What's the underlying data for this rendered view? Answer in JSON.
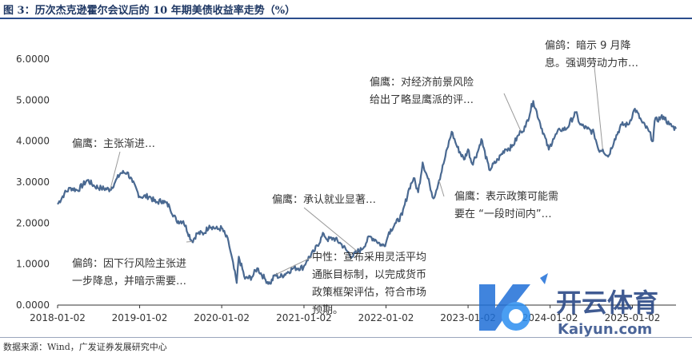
{
  "figure": {
    "title": "图 3：历次杰克逊霍尔会议后的 10 年期美债收益率走势（%）",
    "source": "数据来源：Wind，广发证券发展研究中心"
  },
  "watermark": {
    "brand": "开云体育",
    "site": "Kaiyun.com"
  },
  "colors": {
    "line": "#4a6991",
    "title": "#1f3864",
    "leader": "#9a9a9a",
    "axis": "#333333"
  },
  "chart_data": {
    "type": "line",
    "title": "",
    "xlabel": "",
    "ylabel": "",
    "ylim": [
      0,
      6
    ],
    "xlim": [
      "2018-01-02",
      "2025-07-15"
    ],
    "grid": false,
    "yticks": [
      "0.0000",
      "1.0000",
      "2.0000",
      "3.0000",
      "4.0000",
      "5.0000",
      "6.0000"
    ],
    "xticks": [
      "2018-01-02",
      "2019-01-02",
      "2020-01-02",
      "2021-01-02",
      "2022-01-02",
      "2023-01-02",
      "2024-01-02",
      "2025-01-02"
    ],
    "series": [
      {
        "name": "",
        "points": [
          [
            "2018-01-02",
            2.46
          ],
          [
            "2018-02-01",
            2.72
          ],
          [
            "2018-03-01",
            2.86
          ],
          [
            "2018-04-01",
            2.8
          ],
          [
            "2018-05-15",
            3.05
          ],
          [
            "2018-06-15",
            2.9
          ],
          [
            "2018-07-15",
            2.85
          ],
          [
            "2018-08-24",
            2.82
          ],
          [
            "2018-09-15",
            3.0
          ],
          [
            "2018-10-09",
            3.22
          ],
          [
            "2018-11-08",
            3.24
          ],
          [
            "2018-12-01",
            3.0
          ],
          [
            "2019-01-02",
            2.65
          ],
          [
            "2019-02-15",
            2.65
          ],
          [
            "2019-03-15",
            2.5
          ],
          [
            "2019-04-15",
            2.55
          ],
          [
            "2019-05-15",
            2.4
          ],
          [
            "2019-06-15",
            2.05
          ],
          [
            "2019-07-15",
            2.05
          ],
          [
            "2019-08-23",
            1.55
          ],
          [
            "2019-09-15",
            1.75
          ],
          [
            "2019-10-15",
            1.75
          ],
          [
            "2019-11-08",
            1.94
          ],
          [
            "2019-12-15",
            1.85
          ],
          [
            "2020-01-02",
            1.88
          ],
          [
            "2020-02-01",
            1.55
          ],
          [
            "2020-03-09",
            0.54
          ],
          [
            "2020-03-18",
            1.18
          ],
          [
            "2020-04-15",
            0.64
          ],
          [
            "2020-05-15",
            0.68
          ],
          [
            "2020-06-08",
            0.9
          ],
          [
            "2020-07-15",
            0.62
          ],
          [
            "2020-08-04",
            0.52
          ],
          [
            "2020-08-27",
            0.74
          ],
          [
            "2020-09-15",
            0.68
          ],
          [
            "2020-10-15",
            0.78
          ],
          [
            "2020-11-15",
            0.9
          ],
          [
            "2020-12-31",
            0.92
          ],
          [
            "2021-01-15",
            1.1
          ],
          [
            "2021-02-15",
            1.3
          ],
          [
            "2021-03-31",
            1.74
          ],
          [
            "2021-04-15",
            1.6
          ],
          [
            "2021-05-15",
            1.63
          ],
          [
            "2021-06-15",
            1.5
          ],
          [
            "2021-07-15",
            1.3
          ],
          [
            "2021-08-05",
            1.18
          ],
          [
            "2021-08-27",
            1.31
          ],
          [
            "2021-09-15",
            1.35
          ],
          [
            "2021-10-21",
            1.67
          ],
          [
            "2021-11-15",
            1.6
          ],
          [
            "2021-12-15",
            1.45
          ],
          [
            "2022-01-02",
            1.52
          ],
          [
            "2022-01-15",
            1.78
          ],
          [
            "2022-02-15",
            2.0
          ],
          [
            "2022-03-15",
            2.2
          ],
          [
            "2022-04-15",
            2.85
          ],
          [
            "2022-05-05",
            3.1
          ],
          [
            "2022-05-25",
            2.75
          ],
          [
            "2022-06-14",
            3.48
          ],
          [
            "2022-07-15",
            2.95
          ],
          [
            "2022-08-01",
            2.6
          ],
          [
            "2022-08-26",
            3.04
          ],
          [
            "2022-09-15",
            3.45
          ],
          [
            "2022-10-21",
            4.23
          ],
          [
            "2022-11-15",
            3.85
          ],
          [
            "2022-12-15",
            3.55
          ],
          [
            "2023-01-02",
            3.8
          ],
          [
            "2023-01-20",
            3.45
          ],
          [
            "2023-02-15",
            3.75
          ],
          [
            "2023-03-02",
            4.05
          ],
          [
            "2023-04-06",
            3.3
          ],
          [
            "2023-05-15",
            3.55
          ],
          [
            "2023-06-15",
            3.8
          ],
          [
            "2023-07-15",
            3.85
          ],
          [
            "2023-08-25",
            4.24
          ],
          [
            "2023-09-15",
            4.35
          ],
          [
            "2023-10-19",
            4.98
          ],
          [
            "2023-11-15",
            4.5
          ],
          [
            "2023-12-27",
            3.79
          ],
          [
            "2024-01-15",
            4.05
          ],
          [
            "2024-02-15",
            4.28
          ],
          [
            "2024-03-15",
            4.3
          ],
          [
            "2024-04-25",
            4.7
          ],
          [
            "2024-05-15",
            4.4
          ],
          [
            "2024-06-15",
            4.3
          ],
          [
            "2024-07-15",
            4.2
          ],
          [
            "2024-08-05",
            3.78
          ],
          [
            "2024-08-23",
            3.8
          ],
          [
            "2024-09-16",
            3.62
          ],
          [
            "2024-10-15",
            4.05
          ],
          [
            "2024-11-15",
            4.4
          ],
          [
            "2024-12-15",
            4.4
          ],
          [
            "2025-01-13",
            4.79
          ],
          [
            "2025-02-15",
            4.45
          ],
          [
            "2025-03-15",
            4.25
          ],
          [
            "2025-04-04",
            4.0
          ],
          [
            "2025-04-11",
            4.49
          ],
          [
            "2025-05-21",
            4.6
          ],
          [
            "2025-06-15",
            4.4
          ],
          [
            "2025-07-15",
            4.3
          ]
        ]
      }
    ],
    "annotations": [
      {
        "text_lines": [
          "偏鹰：主张渐进…"
        ],
        "target_date": "2018-08-24",
        "target_value": 2.82
      },
      {
        "text_lines": [
          "偏鸽：因下行风险主张进",
          "一步降息，并暗示需要…"
        ],
        "target_date": "2019-08-23",
        "target_value": 1.55
      },
      {
        "text_lines": [
          "偏鹰：承认就业显著…"
        ],
        "target_date": "2021-08-27",
        "target_value": 1.31
      },
      {
        "text_lines": [
          "中性：宣布采用灵活平均",
          "通胀目标制，以完成货币",
          "政策框架评估，符合市场",
          "预期。"
        ],
        "target_date": "2020-08-27",
        "target_value": 0.74
      },
      {
        "text_lines": [
          "偏鹰：对经济前景风险",
          "给出了略显鹰派的评…"
        ],
        "target_date": "2023-08-25",
        "target_value": 4.24
      },
      {
        "text_lines": [
          "偏鹰：表示政策可能需",
          "要在 “一段时间内”…"
        ],
        "target_date": "2022-08-26",
        "target_value": 3.04
      },
      {
        "text_lines": [
          "偏鸽：暗示 9 月降",
          "息。强调劳动力市…"
        ],
        "target_date": "2024-08-23",
        "target_value": 3.8
      }
    ]
  }
}
